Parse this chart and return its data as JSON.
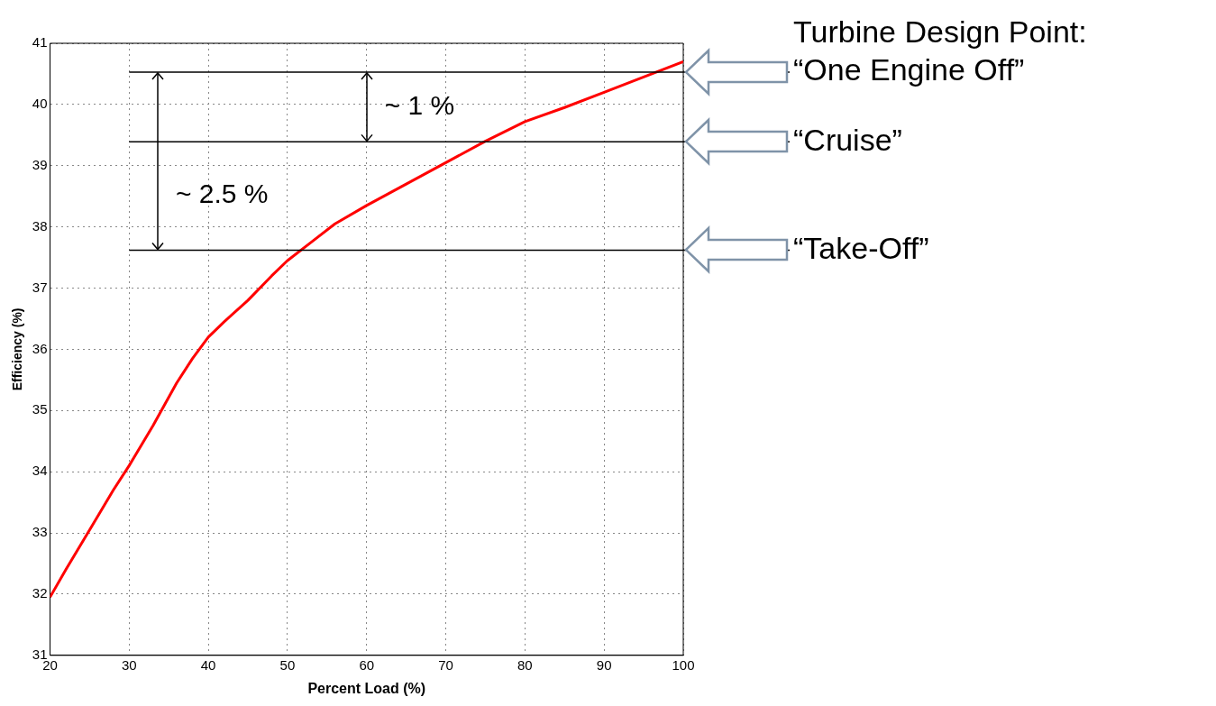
{
  "chart_data": {
    "type": "line",
    "xlabel": "Percent Load (%)",
    "ylabel": "Efficiency (%)",
    "x": [
      20,
      22,
      25,
      28,
      30,
      33,
      36,
      38,
      40,
      42,
      45,
      48,
      50,
      53,
      56,
      60,
      65,
      70,
      75,
      80,
      85,
      90,
      95,
      100
    ],
    "series": [
      {
        "color": "#ff0000",
        "values": [
          31.95,
          32.4,
          33.05,
          33.7,
          34.1,
          34.75,
          35.45,
          35.85,
          36.2,
          36.45,
          36.8,
          37.2,
          37.45,
          37.75,
          38.05,
          38.35,
          38.7,
          39.05,
          39.4,
          39.72,
          39.95,
          40.2,
          40.45,
          40.7
        ]
      }
    ],
    "xlim": [
      20,
      100
    ],
    "xticks": [
      20,
      30,
      40,
      50,
      60,
      70,
      80,
      90,
      100
    ],
    "ylim": [
      31,
      41
    ],
    "yticks": [
      31,
      32,
      33,
      34,
      35,
      36,
      37,
      38,
      39,
      40,
      41
    ],
    "grid": true,
    "legend": false,
    "marker": "none",
    "line_style": "solid",
    "ref_lines": [
      {
        "axis": "y",
        "value": 40.53,
        "label": "“One Engine Off”",
        "color": "#000000"
      },
      {
        "axis": "y",
        "value": 39.39,
        "label": "“Cruise”",
        "color": "#000000"
      },
      {
        "axis": "y",
        "value": 37.62,
        "label": "“Take-Off”",
        "color": "#000000"
      }
    ],
    "annotations": [
      "Turbine Design Point:",
      "~ 1 %",
      "~ 2.5 %"
    ]
  }
}
